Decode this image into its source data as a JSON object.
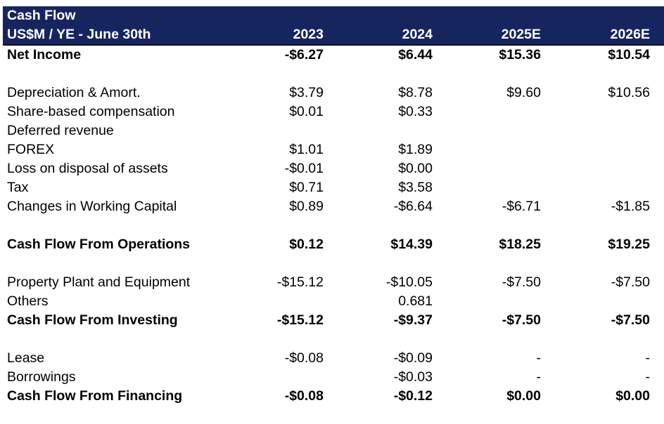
{
  "title": "Cash Flow",
  "subtitle": "US$M / YE - June 30th",
  "columns": [
    "2023",
    "2024",
    "2025E",
    "2026E"
  ],
  "rows": [
    {
      "label": "Net Income",
      "values": [
        "-$6.27",
        "$6.44",
        "$15.36",
        "$10.54"
      ],
      "bold": true
    },
    {
      "label": "",
      "values": [
        "",
        "",
        "",
        ""
      ],
      "bold": false
    },
    {
      "label": "Depreciation & Amort.",
      "values": [
        "$3.79",
        "$8.78",
        "$9.60",
        "$10.56"
      ],
      "bold": false
    },
    {
      "label": "Share-based compensation",
      "values": [
        "$0.01",
        "$0.33",
        "",
        ""
      ],
      "bold": false
    },
    {
      "label": "Deferred revenue",
      "values": [
        "",
        "",
        "",
        ""
      ],
      "bold": false
    },
    {
      "label": "FOREX",
      "values": [
        "$1.01",
        "$1.89",
        "",
        ""
      ],
      "bold": false
    },
    {
      "label": "Loss on disposal of assets",
      "values": [
        "-$0.01",
        "$0.00",
        "",
        ""
      ],
      "bold": false
    },
    {
      "label": "Tax",
      "values": [
        "$0.71",
        "$3.58",
        "",
        ""
      ],
      "bold": false
    },
    {
      "label": "Changes in Working Capital",
      "values": [
        "$0.89",
        "-$6.64",
        "-$6.71",
        "-$1.85"
      ],
      "bold": false
    },
    {
      "label": "",
      "values": [
        "",
        "",
        "",
        ""
      ],
      "bold": false
    },
    {
      "label": "Cash Flow From Operations",
      "values": [
        "$0.12",
        "$14.39",
        "$18.25",
        "$19.25"
      ],
      "bold": true
    },
    {
      "label": "",
      "values": [
        "",
        "",
        "",
        ""
      ],
      "bold": false
    },
    {
      "label": "Property Plant and Equipment",
      "values": [
        "-$15.12",
        "-$10.05",
        "-$7.50",
        "-$7.50"
      ],
      "bold": false
    },
    {
      "label": "Others",
      "values": [
        "",
        "0.681",
        "",
        ""
      ],
      "bold": false
    },
    {
      "label": "Cash Flow From Investing",
      "values": [
        "-$15.12",
        "-$9.37",
        "-$7.50",
        "-$7.50"
      ],
      "bold": true
    },
    {
      "label": "",
      "values": [
        "",
        "",
        "",
        ""
      ],
      "bold": false
    },
    {
      "label": "Lease",
      "values": [
        "-$0.08",
        "-$0.09",
        "-",
        "-"
      ],
      "bold": false
    },
    {
      "label": "Borrowings",
      "values": [
        "",
        "-$0.03",
        "-",
        "-"
      ],
      "bold": false
    },
    {
      "label": "Cash Flow From Financing",
      "values": [
        "-$0.08",
        "-$0.12",
        "$0.00",
        "$0.00"
      ],
      "bold": true
    }
  ],
  "colors": {
    "header_background": "#17255f",
    "header_text": "#ffffff",
    "body_text": "#000000"
  }
}
